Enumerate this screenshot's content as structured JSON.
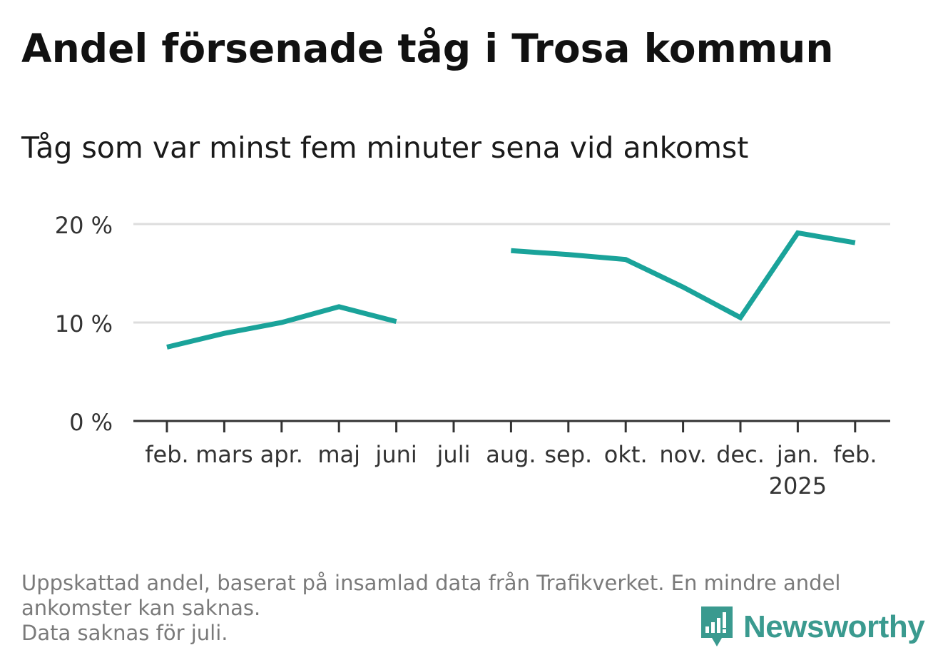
{
  "title": "Andel försenade tåg i Trosa kommun",
  "subtitle": "Tåg som var minst fem minuter sena vid ankomst",
  "footnote": {
    "line1": "Uppskattad andel, baserat på insamlad data från Trafikverket. En mindre andel",
    "line2": "ankomster kan saknas.",
    "line3": "Data saknas för juli."
  },
  "brand": {
    "name": "Newsworthy",
    "icon": "newsworthy-logo-icon"
  },
  "colors": {
    "line": "#1aa39a",
    "grid": "#dddddd",
    "axis": "#333333",
    "text": "#333333",
    "brand": "#3a9a8f"
  },
  "chart_data": {
    "type": "line",
    "categories": [
      "feb.",
      "mars",
      "apr.",
      "maj",
      "juni",
      "juli",
      "aug.",
      "sep.",
      "okt.",
      "nov.",
      "dec.",
      "jan.",
      "feb."
    ],
    "year_label": {
      "category_index": 11,
      "text": "2025"
    },
    "series": [
      {
        "values": [
          7.5,
          8.9,
          10.0,
          11.6,
          10.1,
          null,
          17.3,
          16.9,
          16.4,
          13.6,
          10.5,
          19.1,
          18.1
        ]
      }
    ],
    "yticks": [
      0,
      10,
      20
    ],
    "ytick_labels": [
      "0 %",
      "10 %",
      "20 %"
    ],
    "ylim": [
      0,
      20
    ],
    "xlabel": "",
    "ylabel": "",
    "grid": true,
    "missing_note": "juli"
  }
}
